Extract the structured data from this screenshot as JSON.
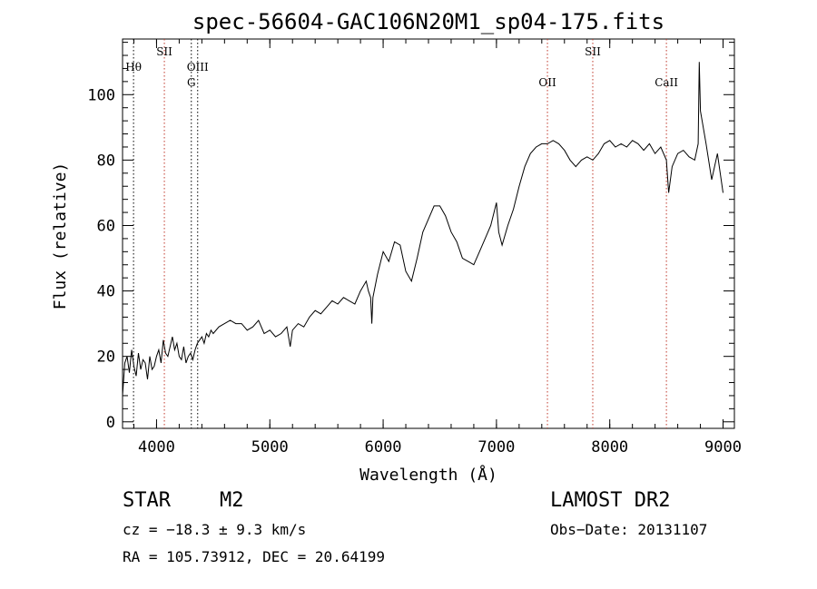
{
  "chart_data": {
    "type": "line",
    "title": "spec-56604-GAC106N20M1_sp04-175.fits",
    "xlabel": "Wavelength (Å)",
    "ylabel": "Flux (relative)",
    "xlim": [
      3700,
      9100
    ],
    "ylim": [
      -2,
      117
    ],
    "xticks": [
      4000,
      5000,
      6000,
      7000,
      8000,
      9000
    ],
    "yticks": [
      0,
      20,
      40,
      60,
      80,
      100
    ],
    "grid": false,
    "spectrum": {
      "x": [
        3700,
        3720,
        3740,
        3760,
        3780,
        3800,
        3820,
        3840,
        3860,
        3880,
        3900,
        3920,
        3940,
        3960,
        3980,
        4000,
        4020,
        4040,
        4060,
        4080,
        4100,
        4120,
        4140,
        4160,
        4180,
        4200,
        4220,
        4240,
        4260,
        4280,
        4300,
        4320,
        4340,
        4360,
        4380,
        4400,
        4420,
        4440,
        4460,
        4480,
        4500,
        4550,
        4600,
        4650,
        4700,
        4750,
        4800,
        4850,
        4900,
        4950,
        5000,
        5050,
        5100,
        5150,
        5180,
        5200,
        5250,
        5300,
        5350,
        5400,
        5450,
        5500,
        5550,
        5600,
        5650,
        5700,
        5750,
        5800,
        5850,
        5870,
        5890,
        5900,
        5910,
        5950,
        6000,
        6050,
        6100,
        6150,
        6200,
        6250,
        6300,
        6350,
        6400,
        6450,
        6500,
        6550,
        6600,
        6650,
        6700,
        6750,
        6800,
        6850,
        6900,
        6950,
        7000,
        7020,
        7050,
        7100,
        7150,
        7200,
        7250,
        7300,
        7350,
        7400,
        7450,
        7500,
        7550,
        7600,
        7650,
        7700,
        7750,
        7800,
        7850,
        7900,
        7950,
        8000,
        8050,
        8100,
        8150,
        8200,
        8250,
        8300,
        8350,
        8400,
        8450,
        8500,
        8520,
        8550,
        8600,
        8650,
        8700,
        8750,
        8780,
        8790,
        8800,
        8850,
        8900,
        8950,
        9000
      ],
      "y": [
        8,
        18,
        20,
        15,
        22,
        17,
        14,
        21,
        16,
        19,
        18,
        13,
        20,
        16,
        17,
        20,
        22,
        18,
        25,
        21,
        20,
        23,
        26,
        22,
        24,
        20,
        19,
        23,
        18,
        20,
        21,
        19,
        22,
        24,
        25,
        26,
        24,
        27,
        26,
        28,
        27,
        29,
        30,
        31,
        30,
        30,
        28,
        29,
        31,
        27,
        28,
        26,
        27,
        29,
        23,
        28,
        30,
        29,
        32,
        34,
        33,
        35,
        37,
        36,
        38,
        37,
        36,
        40,
        43,
        40,
        38,
        30,
        38,
        45,
        52,
        49,
        55,
        54,
        46,
        43,
        50,
        58,
        62,
        66,
        66,
        63,
        58,
        55,
        50,
        49,
        48,
        52,
        56,
        60,
        67,
        58,
        54,
        60,
        65,
        72,
        78,
        82,
        84,
        85,
        85,
        86,
        85,
        83,
        80,
        78,
        80,
        81,
        80,
        82,
        85,
        86,
        84,
        85,
        84,
        86,
        85,
        83,
        85,
        82,
        84,
        80,
        70,
        78,
        82,
        83,
        81,
        80,
        85,
        110,
        95,
        85,
        74,
        82,
        70
      ]
    },
    "lines": [
      {
        "name": "Hθ",
        "x": 3797,
        "row": "top"
      },
      {
        "name": "SII",
        "x": 4069,
        "row": "upper"
      },
      {
        "name": "OIII",
        "x": 4363,
        "row": "top"
      },
      {
        "name": "G",
        "x": 4307,
        "row": "second"
      },
      {
        "name": "OII",
        "x": 7450,
        "row": "second"
      },
      {
        "name": "SII",
        "x": 7850,
        "row": "upper"
      },
      {
        "name": "CaII",
        "x": 8500,
        "row": "second"
      }
    ]
  },
  "info": {
    "class_label": "STAR",
    "subclass_label": "M2",
    "survey_label": "LAMOST DR2",
    "redshift_text": "cz = −18.3 ± 9.3 km/s",
    "obsdate_text": "Obs−Date: 20131107",
    "coords_text": "RA = 105.73912, DEC =  20.64199"
  }
}
